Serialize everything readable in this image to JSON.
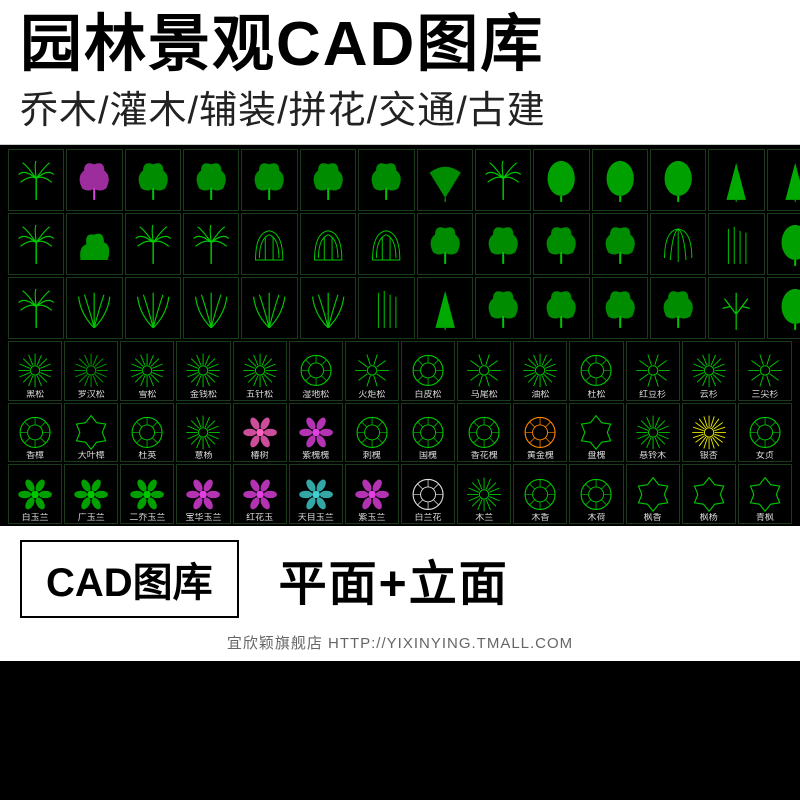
{
  "header": {
    "title": "园林景观CAD图库",
    "subtitle": "乔木/灌木/辅装/拼花/交通/古建"
  },
  "colors": {
    "green": "#00c800",
    "green2": "#00a000",
    "magenta": "#e040e0",
    "pink": "#ff60c0",
    "orange": "#ff8800",
    "yellow": "#e8e800",
    "cyan": "#40d0d0",
    "white": "#e0e0e0",
    "gray": "#808080",
    "border": "#1a3a1a",
    "bg": "#000000"
  },
  "elevation_rows": [
    [
      {
        "shape": "palm",
        "c": "green"
      },
      {
        "shape": "tree1",
        "c": "magenta"
      },
      {
        "shape": "tree2",
        "c": "green"
      },
      {
        "shape": "tree3",
        "c": "green"
      },
      {
        "shape": "tree4",
        "c": "green"
      },
      {
        "shape": "tree5",
        "c": "green"
      },
      {
        "shape": "tree6",
        "c": "green"
      },
      {
        "shape": "fan",
        "c": "green"
      },
      {
        "shape": "palm2",
        "c": "green"
      },
      {
        "shape": "round",
        "c": "green"
      },
      {
        "shape": "round2",
        "c": "green"
      },
      {
        "shape": "round3",
        "c": "green"
      },
      {
        "shape": "pine",
        "c": "green"
      },
      {
        "shape": "pine2",
        "c": "green"
      }
    ],
    [
      {
        "shape": "palm3",
        "c": "green"
      },
      {
        "shape": "shrub",
        "c": "green"
      },
      {
        "shape": "palm4",
        "c": "green"
      },
      {
        "shape": "palm5",
        "c": "green"
      },
      {
        "shape": "dome",
        "c": "green"
      },
      {
        "shape": "dome2",
        "c": "green"
      },
      {
        "shape": "dome3",
        "c": "green"
      },
      {
        "shape": "oak",
        "c": "green"
      },
      {
        "shape": "oak2",
        "c": "green"
      },
      {
        "shape": "oak3",
        "c": "green"
      },
      {
        "shape": "oak4",
        "c": "green"
      },
      {
        "shape": "weep",
        "c": "green"
      },
      {
        "shape": "bamboo",
        "c": "green"
      },
      {
        "shape": "leaf",
        "c": "green"
      }
    ],
    [
      {
        "shape": "palm6",
        "c": "green"
      },
      {
        "shape": "fern",
        "c": "green"
      },
      {
        "shape": "fern2",
        "c": "green"
      },
      {
        "shape": "fern3",
        "c": "green"
      },
      {
        "shape": "fern4",
        "c": "green"
      },
      {
        "shape": "fern5",
        "c": "green"
      },
      {
        "shape": "bamboo2",
        "c": "green"
      },
      {
        "shape": "pine3",
        "c": "green"
      },
      {
        "shape": "tree7",
        "c": "green"
      },
      {
        "shape": "tree8",
        "c": "green"
      },
      {
        "shape": "tree9",
        "c": "green"
      },
      {
        "shape": "tree10",
        "c": "green"
      },
      {
        "shape": "branch",
        "c": "green"
      },
      {
        "shape": "oval",
        "c": "green"
      }
    ]
  ],
  "plan_rows": [
    {
      "cells": [
        {
          "s": "burst",
          "c": "green",
          "l": "黑松"
        },
        {
          "s": "burst",
          "c": "green2",
          "l": "罗汉松"
        },
        {
          "s": "burst",
          "c": "green",
          "l": "雪松"
        },
        {
          "s": "burst",
          "c": "green",
          "l": "金钱松"
        },
        {
          "s": "burst",
          "c": "green",
          "l": "五针松"
        },
        {
          "s": "circle",
          "c": "green",
          "l": "湿地松"
        },
        {
          "s": "star",
          "c": "green",
          "l": "火炬松"
        },
        {
          "s": "circle",
          "c": "green",
          "l": "白皮松"
        },
        {
          "s": "star",
          "c": "green",
          "l": "马尾松"
        },
        {
          "s": "burst",
          "c": "green",
          "l": "油松"
        },
        {
          "s": "circle",
          "c": "green",
          "l": "杜松"
        },
        {
          "s": "star",
          "c": "green",
          "l": "红豆杉"
        },
        {
          "s": "burst",
          "c": "green",
          "l": "云杉"
        },
        {
          "s": "star",
          "c": "green",
          "l": "三尖杉"
        }
      ]
    },
    {
      "cells": [
        {
          "s": "circle",
          "c": "green",
          "l": "香樟"
        },
        {
          "s": "gear",
          "c": "green",
          "l": "大叶樟"
        },
        {
          "s": "circle",
          "c": "green",
          "l": "杜英"
        },
        {
          "s": "burst",
          "c": "green",
          "l": "意杨"
        },
        {
          "s": "flower",
          "c": "pink",
          "l": "椿树"
        },
        {
          "s": "flower",
          "c": "magenta",
          "l": "紫槐槐"
        },
        {
          "s": "circle",
          "c": "green",
          "l": "刺槐"
        },
        {
          "s": "circle",
          "c": "green",
          "l": "国槐"
        },
        {
          "s": "circle",
          "c": "green",
          "l": "香花槐"
        },
        {
          "s": "circle",
          "c": "orange",
          "l": "黄金槐"
        },
        {
          "s": "gear",
          "c": "green",
          "l": "盘槐"
        },
        {
          "s": "burst",
          "c": "green",
          "l": "悬铃木"
        },
        {
          "s": "spray",
          "c": "yellow",
          "l": "银杏"
        },
        {
          "s": "circle",
          "c": "green",
          "l": "女贞"
        }
      ]
    },
    {
      "cells": [
        {
          "s": "flower",
          "c": "green",
          "l": "白玉兰"
        },
        {
          "s": "flower",
          "c": "green",
          "l": "广玉兰"
        },
        {
          "s": "flower",
          "c": "green",
          "l": "二乔玉兰"
        },
        {
          "s": "flower",
          "c": "magenta",
          "l": "宝华玉兰"
        },
        {
          "s": "flower",
          "c": "magenta",
          "l": "红花玉"
        },
        {
          "s": "flower",
          "c": "cyan",
          "l": "天目玉兰"
        },
        {
          "s": "flower",
          "c": "magenta",
          "l": "紫玉兰"
        },
        {
          "s": "circle",
          "c": "white",
          "l": "白兰花"
        },
        {
          "s": "burst",
          "c": "green",
          "l": "木兰"
        },
        {
          "s": "circle",
          "c": "green",
          "l": "木香"
        },
        {
          "s": "circle",
          "c": "green",
          "l": "木荷"
        },
        {
          "s": "gear",
          "c": "green",
          "l": "枫香"
        },
        {
          "s": "gear",
          "c": "green",
          "l": "枫杨"
        },
        {
          "s": "gear",
          "c": "green",
          "l": "青枫"
        }
      ]
    }
  ],
  "footer": {
    "button_label": "CAD图库",
    "right_text": "平面+立面",
    "store": "宜欣颖旗舰店  HTTP://YIXINYING.TMALL.COM"
  }
}
